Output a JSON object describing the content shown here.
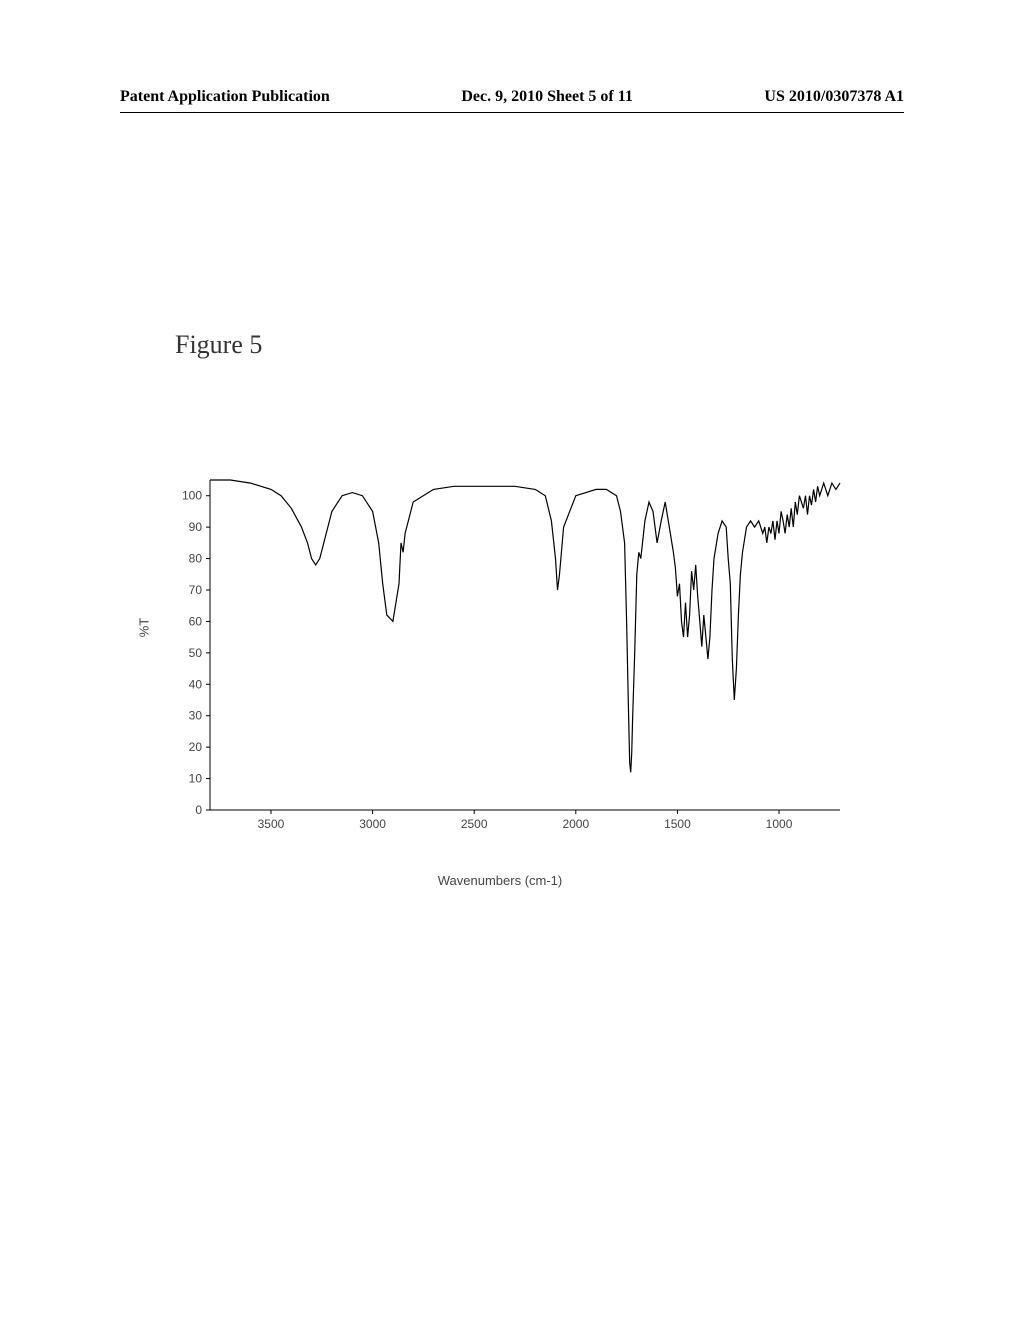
{
  "header": {
    "left": "Patent Application Publication",
    "center": "Dec. 9, 2010   Sheet 5 of 11",
    "right": "US 2010/0307378 A1"
  },
  "figure": {
    "label": "Figure 5"
  },
  "chart": {
    "type": "line",
    "ylabel": "%T",
    "xlabel": "Wavenumbers (cm-1)",
    "label_fontsize": 13,
    "tick_fontsize": 12,
    "ylim": [
      0,
      105
    ],
    "xlim": [
      3800,
      700
    ],
    "yticks": [
      0,
      10,
      20,
      30,
      40,
      50,
      60,
      70,
      80,
      90,
      100
    ],
    "xticks": [
      3500,
      3000,
      2500,
      2000,
      1500,
      1000
    ],
    "background_color": "#ffffff",
    "axis_color": "#000000",
    "line_color": "#000000",
    "line_width": 1.2,
    "data": [
      [
        3800,
        105
      ],
      [
        3700,
        105
      ],
      [
        3600,
        104
      ],
      [
        3500,
        102
      ],
      [
        3450,
        100
      ],
      [
        3400,
        96
      ],
      [
        3350,
        90
      ],
      [
        3320,
        85
      ],
      [
        3300,
        80
      ],
      [
        3280,
        78
      ],
      [
        3260,
        80
      ],
      [
        3240,
        85
      ],
      [
        3200,
        95
      ],
      [
        3150,
        100
      ],
      [
        3100,
        101
      ],
      [
        3050,
        100
      ],
      [
        3000,
        95
      ],
      [
        2970,
        85
      ],
      [
        2950,
        72
      ],
      [
        2930,
        62
      ],
      [
        2900,
        60
      ],
      [
        2870,
        72
      ],
      [
        2860,
        85
      ],
      [
        2850,
        82
      ],
      [
        2840,
        88
      ],
      [
        2800,
        98
      ],
      [
        2700,
        102
      ],
      [
        2600,
        103
      ],
      [
        2500,
        103
      ],
      [
        2400,
        103
      ],
      [
        2300,
        103
      ],
      [
        2200,
        102
      ],
      [
        2150,
        100
      ],
      [
        2120,
        92
      ],
      [
        2100,
        80
      ],
      [
        2090,
        70
      ],
      [
        2080,
        75
      ],
      [
        2060,
        90
      ],
      [
        2000,
        100
      ],
      [
        1900,
        102
      ],
      [
        1850,
        102
      ],
      [
        1800,
        100
      ],
      [
        1780,
        95
      ],
      [
        1760,
        85
      ],
      [
        1750,
        60
      ],
      [
        1740,
        30
      ],
      [
        1735,
        15
      ],
      [
        1730,
        12
      ],
      [
        1725,
        18
      ],
      [
        1720,
        30
      ],
      [
        1710,
        50
      ],
      [
        1700,
        75
      ],
      [
        1690,
        82
      ],
      [
        1680,
        80
      ],
      [
        1660,
        92
      ],
      [
        1640,
        98
      ],
      [
        1620,
        95
      ],
      [
        1600,
        85
      ],
      [
        1580,
        92
      ],
      [
        1560,
        98
      ],
      [
        1540,
        90
      ],
      [
        1520,
        82
      ],
      [
        1510,
        77
      ],
      [
        1500,
        68
      ],
      [
        1490,
        72
      ],
      [
        1480,
        60
      ],
      [
        1470,
        55
      ],
      [
        1460,
        66
      ],
      [
        1450,
        55
      ],
      [
        1440,
        62
      ],
      [
        1430,
        76
      ],
      [
        1420,
        70
      ],
      [
        1410,
        78
      ],
      [
        1400,
        68
      ],
      [
        1390,
        60
      ],
      [
        1380,
        52
      ],
      [
        1370,
        62
      ],
      [
        1360,
        55
      ],
      [
        1350,
        48
      ],
      [
        1340,
        55
      ],
      [
        1330,
        70
      ],
      [
        1320,
        80
      ],
      [
        1300,
        88
      ],
      [
        1280,
        92
      ],
      [
        1260,
        90
      ],
      [
        1250,
        80
      ],
      [
        1240,
        72
      ],
      [
        1230,
        48
      ],
      [
        1220,
        35
      ],
      [
        1210,
        45
      ],
      [
        1200,
        62
      ],
      [
        1190,
        75
      ],
      [
        1180,
        82
      ],
      [
        1160,
        90
      ],
      [
        1140,
        92
      ],
      [
        1120,
        90
      ],
      [
        1100,
        92
      ],
      [
        1080,
        88
      ],
      [
        1070,
        90
      ],
      [
        1060,
        85
      ],
      [
        1050,
        90
      ],
      [
        1040,
        88
      ],
      [
        1030,
        92
      ],
      [
        1020,
        86
      ],
      [
        1010,
        92
      ],
      [
        1000,
        88
      ],
      [
        990,
        95
      ],
      [
        980,
        92
      ],
      [
        970,
        88
      ],
      [
        960,
        94
      ],
      [
        950,
        90
      ],
      [
        940,
        96
      ],
      [
        930,
        90
      ],
      [
        920,
        98
      ],
      [
        910,
        94
      ],
      [
        900,
        100
      ],
      [
        880,
        96
      ],
      [
        870,
        100
      ],
      [
        860,
        94
      ],
      [
        850,
        100
      ],
      [
        840,
        97
      ],
      [
        830,
        102
      ],
      [
        820,
        98
      ],
      [
        810,
        103
      ],
      [
        800,
        100
      ],
      [
        780,
        104
      ],
      [
        760,
        100
      ],
      [
        740,
        104
      ],
      [
        720,
        102
      ],
      [
        700,
        104
      ]
    ]
  }
}
